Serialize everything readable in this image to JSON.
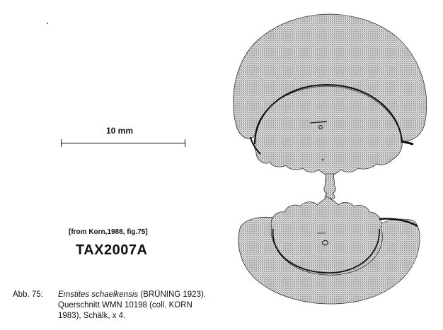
{
  "scale": {
    "label": "10 mm"
  },
  "source_reference": "[from Korn,1988, fig.75]",
  "taxon_id": "TAX2007A",
  "caption": {
    "label": "Abb. 75:",
    "species": "Emstites schaelkensis",
    "author": "(BRÜNING 1923).",
    "line2": "Querschnitt WMN 10198 (coll. KORN",
    "line3": "1983), Schälk, x 4."
  },
  "colors": {
    "fill": "#c8c8c8",
    "stroke": "#111111"
  }
}
